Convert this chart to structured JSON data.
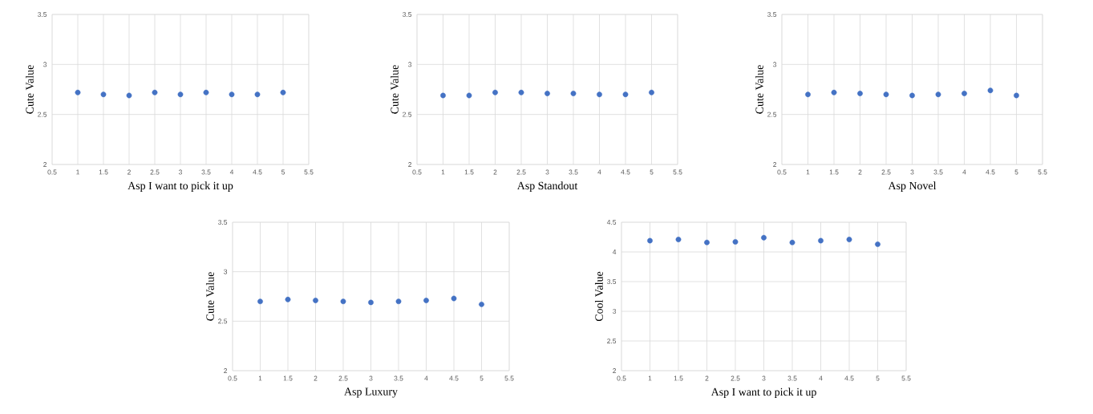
{
  "chart_data": [
    {
      "type": "scatter",
      "xlabel": "Asp I want to pick it up",
      "ylabel": "Cute Value",
      "color": "#4472c4",
      "marker": "circle",
      "grid": true,
      "x": [
        1,
        1.5,
        2,
        2.5,
        3,
        3.5,
        4,
        4.5,
        5
      ],
      "values": [
        2.72,
        2.7,
        2.69,
        2.72,
        2.7,
        2.72,
        2.7,
        2.7,
        2.72
      ],
      "xlim": [
        0.5,
        5.5
      ],
      "ylim": [
        2,
        3.5
      ],
      "xticks": [
        0.5,
        1,
        1.5,
        2,
        2.5,
        3,
        3.5,
        4,
        4.5,
        5,
        5.5
      ],
      "yticks": [
        2,
        2.5,
        3,
        3.5
      ]
    },
    {
      "type": "scatter",
      "xlabel": "Asp Standout",
      "ylabel": "Cute Value",
      "color": "#4472c4",
      "marker": "circle",
      "grid": true,
      "x": [
        1,
        1.5,
        2,
        2.5,
        3,
        3.5,
        4,
        4.5,
        5
      ],
      "values": [
        2.69,
        2.69,
        2.72,
        2.72,
        2.71,
        2.71,
        2.7,
        2.7,
        2.72
      ],
      "xlim": [
        0.5,
        5.5
      ],
      "ylim": [
        2,
        3.5
      ],
      "xticks": [
        0.5,
        1,
        1.5,
        2,
        2.5,
        3,
        3.5,
        4,
        4.5,
        5,
        5.5
      ],
      "yticks": [
        2,
        2.5,
        3,
        3.5
      ]
    },
    {
      "type": "scatter",
      "xlabel": "Asp Novel",
      "ylabel": "Cute Value",
      "color": "#4472c4",
      "marker": "circle",
      "grid": true,
      "x": [
        1,
        1.5,
        2,
        2.5,
        3,
        3.5,
        4,
        4.5,
        5
      ],
      "values": [
        2.7,
        2.72,
        2.71,
        2.7,
        2.69,
        2.7,
        2.71,
        2.74,
        2.69
      ],
      "xlim": [
        0.5,
        5.5
      ],
      "ylim": [
        2,
        3.5
      ],
      "xticks": [
        0.5,
        1,
        1.5,
        2,
        2.5,
        3,
        3.5,
        4,
        4.5,
        5,
        5.5
      ],
      "yticks": [
        2,
        2.5,
        3,
        3.5
      ]
    },
    {
      "type": "scatter",
      "xlabel": "Asp Luxury",
      "ylabel": "Cute Value",
      "color": "#4472c4",
      "marker": "circle",
      "grid": true,
      "x": [
        1,
        1.5,
        2,
        2.5,
        3,
        3.5,
        4,
        4.5,
        5
      ],
      "values": [
        2.7,
        2.72,
        2.71,
        2.7,
        2.69,
        2.7,
        2.71,
        2.73,
        2.67
      ],
      "xlim": [
        0.5,
        5.5
      ],
      "ylim": [
        2,
        3.5
      ],
      "xticks": [
        0.5,
        1,
        1.5,
        2,
        2.5,
        3,
        3.5,
        4,
        4.5,
        5,
        5.5
      ],
      "yticks": [
        2,
        2.5,
        3,
        3.5
      ]
    },
    {
      "type": "scatter",
      "xlabel": "Asp I want to pick it up",
      "ylabel": "Cool Value",
      "color": "#4472c4",
      "marker": "circle",
      "grid": true,
      "x": [
        1,
        1.5,
        2,
        2.5,
        3,
        3.5,
        4,
        4.5,
        5
      ],
      "values": [
        4.19,
        4.21,
        4.16,
        4.17,
        4.24,
        4.16,
        4.19,
        4.21,
        4.13
      ],
      "xlim": [
        0.5,
        5.5
      ],
      "ylim": [
        2,
        4.5
      ],
      "xticks": [
        0.5,
        1,
        1.5,
        2,
        2.5,
        3,
        3.5,
        4,
        4.5,
        5,
        5.5
      ],
      "yticks": [
        2,
        2.5,
        3,
        3.5,
        4,
        4.5
      ]
    }
  ]
}
